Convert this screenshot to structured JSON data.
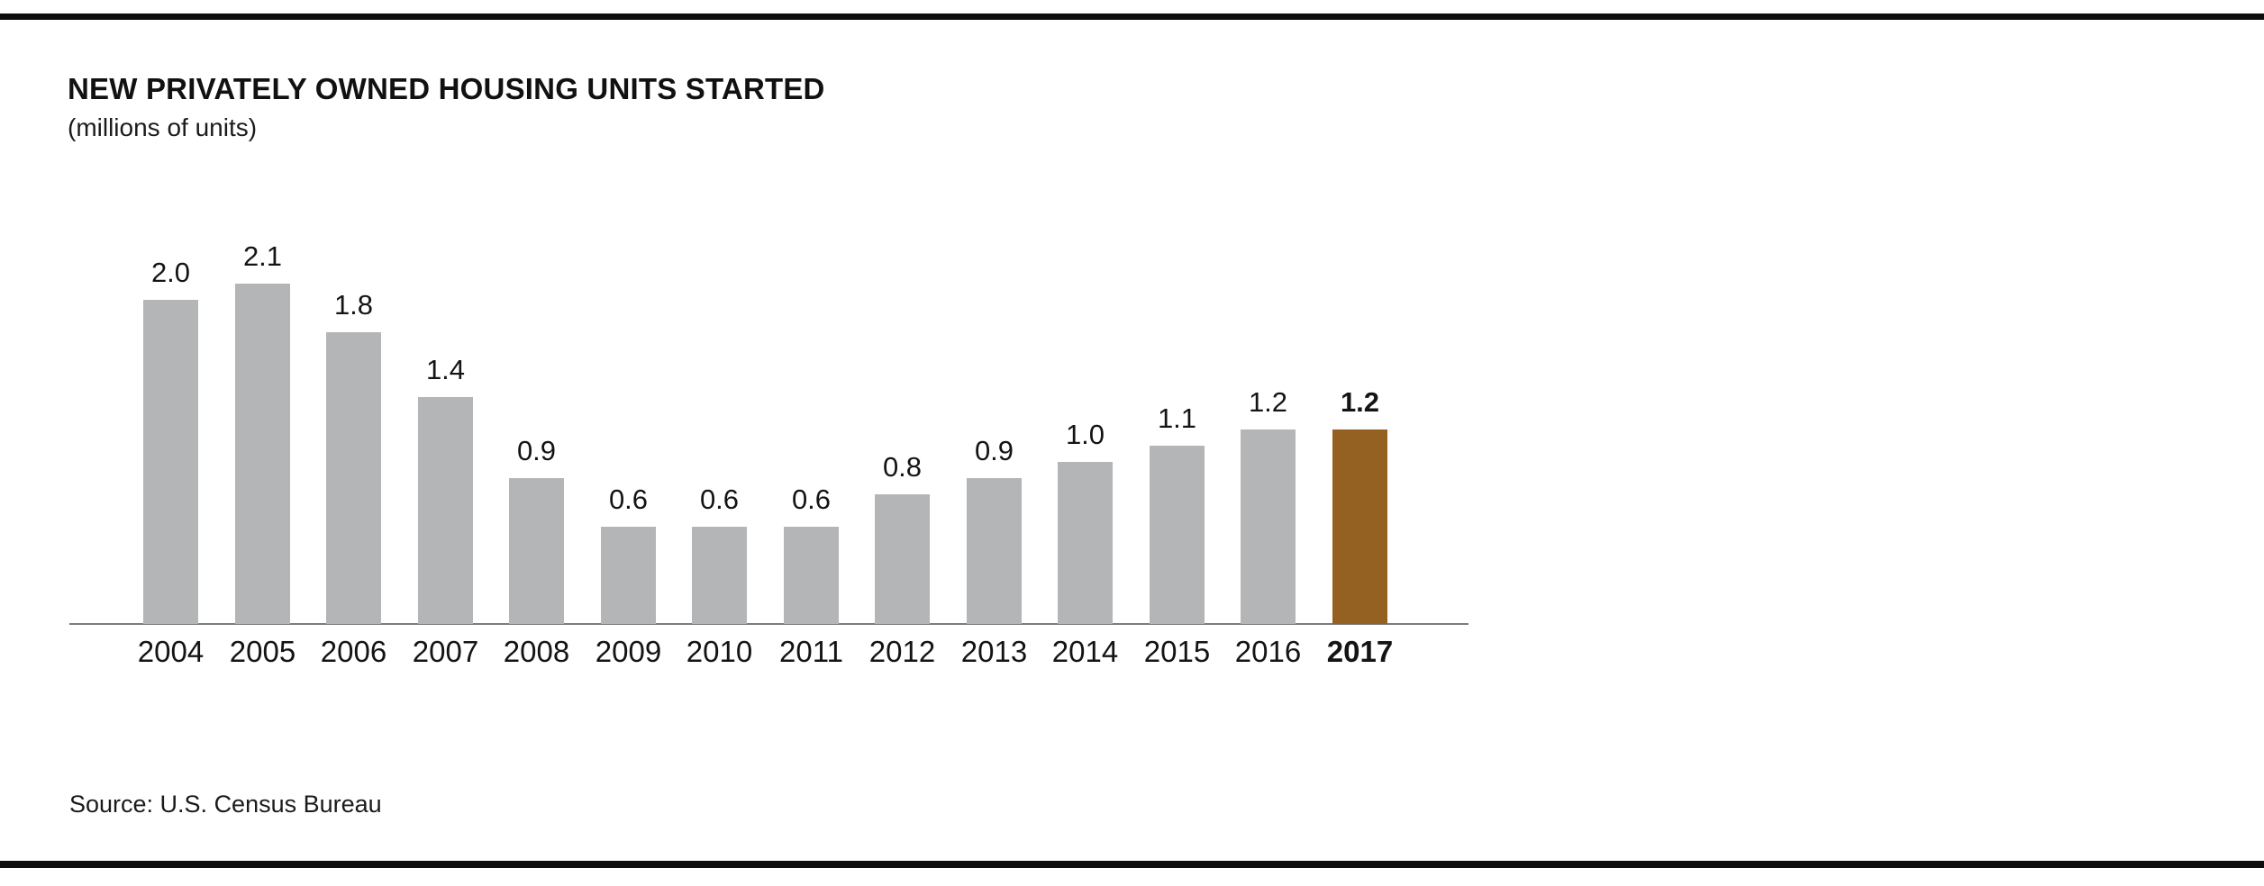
{
  "header": {
    "title": "NEW PRIVATELY OWNED HOUSING UNITS STARTED",
    "subtitle": "(millions of units)"
  },
  "footer": {
    "source": "Source: U.S. Census Bureau"
  },
  "colors": {
    "bar_default": "#b4b5b7",
    "bar_highlight": "#956122",
    "axis_line": "#7c7c7c",
    "rule": "#0e0e0e",
    "text": "#141414"
  },
  "chart_data": {
    "type": "bar",
    "title": "NEW PRIVATELY OWNED HOUSING UNITS STARTED",
    "subtitle": "(millions of units)",
    "ylabel": "millions of units",
    "xlabel": "",
    "categories": [
      "2004",
      "2005",
      "2006",
      "2007",
      "2008",
      "2009",
      "2010",
      "2011",
      "2012",
      "2013",
      "2014",
      "2015",
      "2016",
      "2017"
    ],
    "values": [
      2.0,
      2.1,
      1.8,
      1.4,
      0.9,
      0.6,
      0.6,
      0.6,
      0.8,
      0.9,
      1.0,
      1.1,
      1.2,
      1.2
    ],
    "value_labels": [
      "2.0",
      "2.1",
      "1.8",
      "1.4",
      "0.9",
      "0.6",
      "0.6",
      "0.6",
      "0.8",
      "0.9",
      "1.0",
      "1.1",
      "1.2",
      "1.2"
    ],
    "highlighted_category": "2017",
    "ylim": [
      0,
      2.2
    ],
    "grid": false,
    "legend": false,
    "data_labels": true,
    "source": "Source: U.S. Census Bureau"
  }
}
